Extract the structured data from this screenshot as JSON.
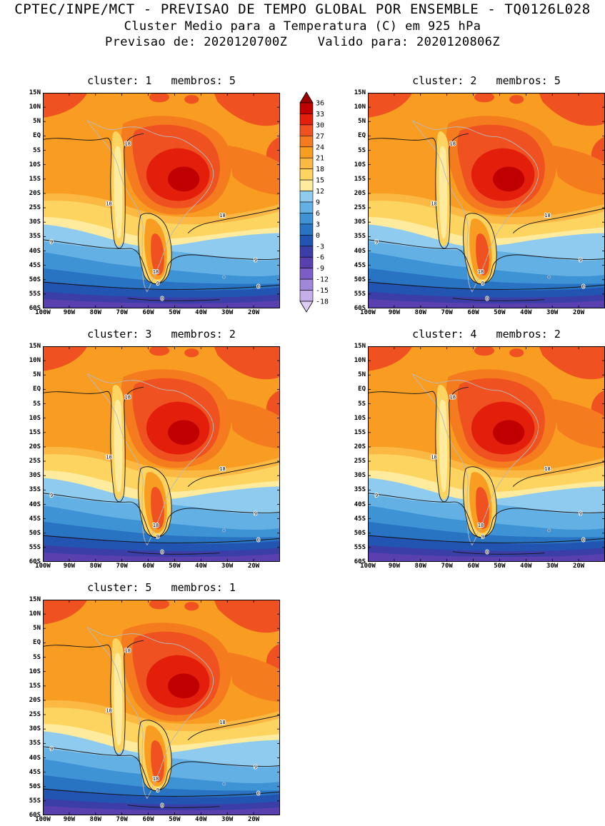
{
  "header": {
    "line1": "CPTEC/INPE/MCT - PREVISAO DE TEMPO GLOBAL POR ENSEMBLE - TQ0126L028",
    "line2": "Cluster Medio para a Temperatura (C) em 925 hPa",
    "line3": "Previsao de: 2020120700Z    Valido para: 2020120806Z"
  },
  "labels": {
    "cluster_word": "cluster:",
    "membros_word": "membros:"
  },
  "chart_data": {
    "type": "heatmap",
    "subtype": "filled-contour-temperature-map",
    "title": "Cluster Medio para a Temperatura (C) em 925 hPa",
    "model": "TQ0126L028",
    "forecast_init": "2020120700Z",
    "forecast_valid": "2020120806Z",
    "units": "C",
    "level_hpa": 925,
    "region": {
      "lon_range": [
        "100W",
        "15W"
      ],
      "lat_range": [
        "15N",
        "60S"
      ]
    },
    "panels": [
      {
        "cluster": 1,
        "membros": 5
      },
      {
        "cluster": 2,
        "membros": 5
      },
      {
        "cluster": 3,
        "membros": 2
      },
      {
        "cluster": 4,
        "membros": 2
      },
      {
        "cluster": 5,
        "membros": 1
      }
    ],
    "lat_ticks": [
      "15N",
      "10N",
      "5N",
      "EQ",
      "5S",
      "10S",
      "15S",
      "20S",
      "25S",
      "30S",
      "35S",
      "40S",
      "45S",
      "50S",
      "55S",
      "60S"
    ],
    "lon_ticks": [
      "100W",
      "90W",
      "80W",
      "70W",
      "60W",
      "50W",
      "40W",
      "30W",
      "20W"
    ],
    "colorbar": {
      "levels": [
        36,
        33,
        30,
        27,
        24,
        21,
        18,
        15,
        12,
        9,
        6,
        3,
        0,
        -3,
        -6,
        -9,
        -12,
        -15,
        -18
      ],
      "colors": [
        "#C00000",
        "#E31F0C",
        "#EF5120",
        "#F57C1E",
        "#F99C22",
        "#FBB843",
        "#FDD45F",
        "#FEEB9E",
        "#8FCBEE",
        "#63B1E4",
        "#3E93D5",
        "#2973C3",
        "#2255B2",
        "#3A3EA6",
        "#5A3FAE",
        "#7C5DC5",
        "#A088D9",
        "#C4AFE9"
      ],
      "arrow_top": "#9C0000",
      "arrow_bottom": "#DCCCF2"
    },
    "contour_labels": [
      "18",
      "9",
      "0"
    ]
  }
}
